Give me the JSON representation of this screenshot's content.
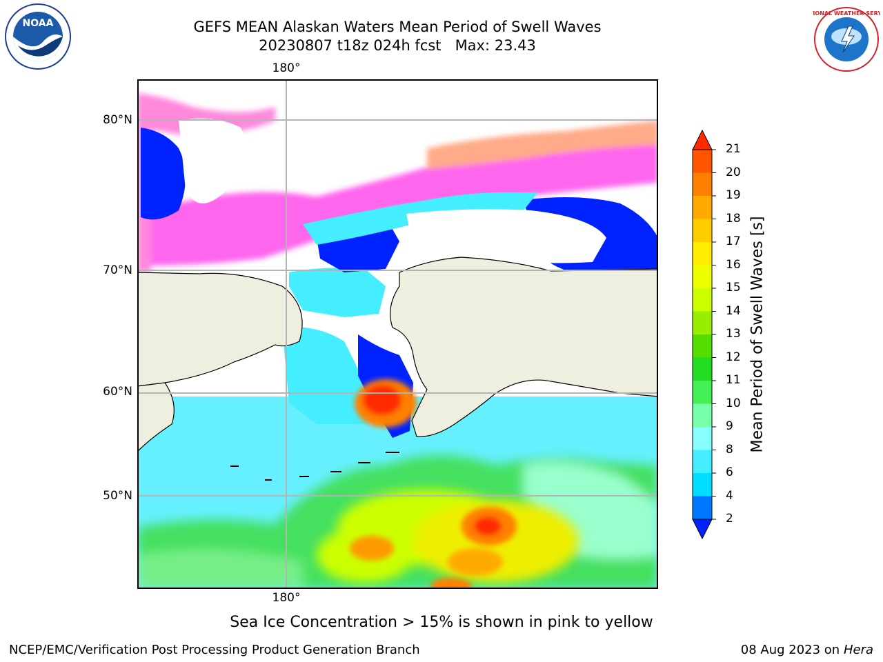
{
  "header": {
    "title_line1": "GEFS MEAN Alaskan Waters Mean Period of Swell Waves",
    "title_line2": "20230807 t18z 024h fcst   Max: 23.43"
  },
  "logos": {
    "left": "NOAA",
    "right": "NATIONAL WEATHER SERVICE"
  },
  "map": {
    "lon_label_top": "180°",
    "lon_label_bottom": "180°",
    "lat_labels": [
      "80°N",
      "70°N",
      "60°N",
      "50°N"
    ]
  },
  "colorbar": {
    "label": "Mean Period of Swell Waves [s]",
    "ticks": [
      "21",
      "20",
      "19",
      "18",
      "17",
      "16",
      "15",
      "14",
      "13",
      "12",
      "11",
      "10",
      "9",
      "8",
      "6",
      "4",
      "2"
    ],
    "colors": [
      "#ff2a00",
      "#ff5500",
      "#ff8000",
      "#ffaa00",
      "#ffcc00",
      "#ffee00",
      "#eeff00",
      "#ccff00",
      "#99ee00",
      "#55dd00",
      "#22dd22",
      "#44ee55",
      "#77ffaa",
      "#88ffff",
      "#44eeff",
      "#00ddff",
      "#0077ff",
      "#0022ff"
    ]
  },
  "note": "Sea Ice Concentration > 15% is shown in pink to yellow",
  "footer": {
    "left": "NCEP/EMC/Verification Post Processing Product Generation Branch",
    "date": "08 Aug 2023",
    "on": "on",
    "host": "Hera"
  }
}
